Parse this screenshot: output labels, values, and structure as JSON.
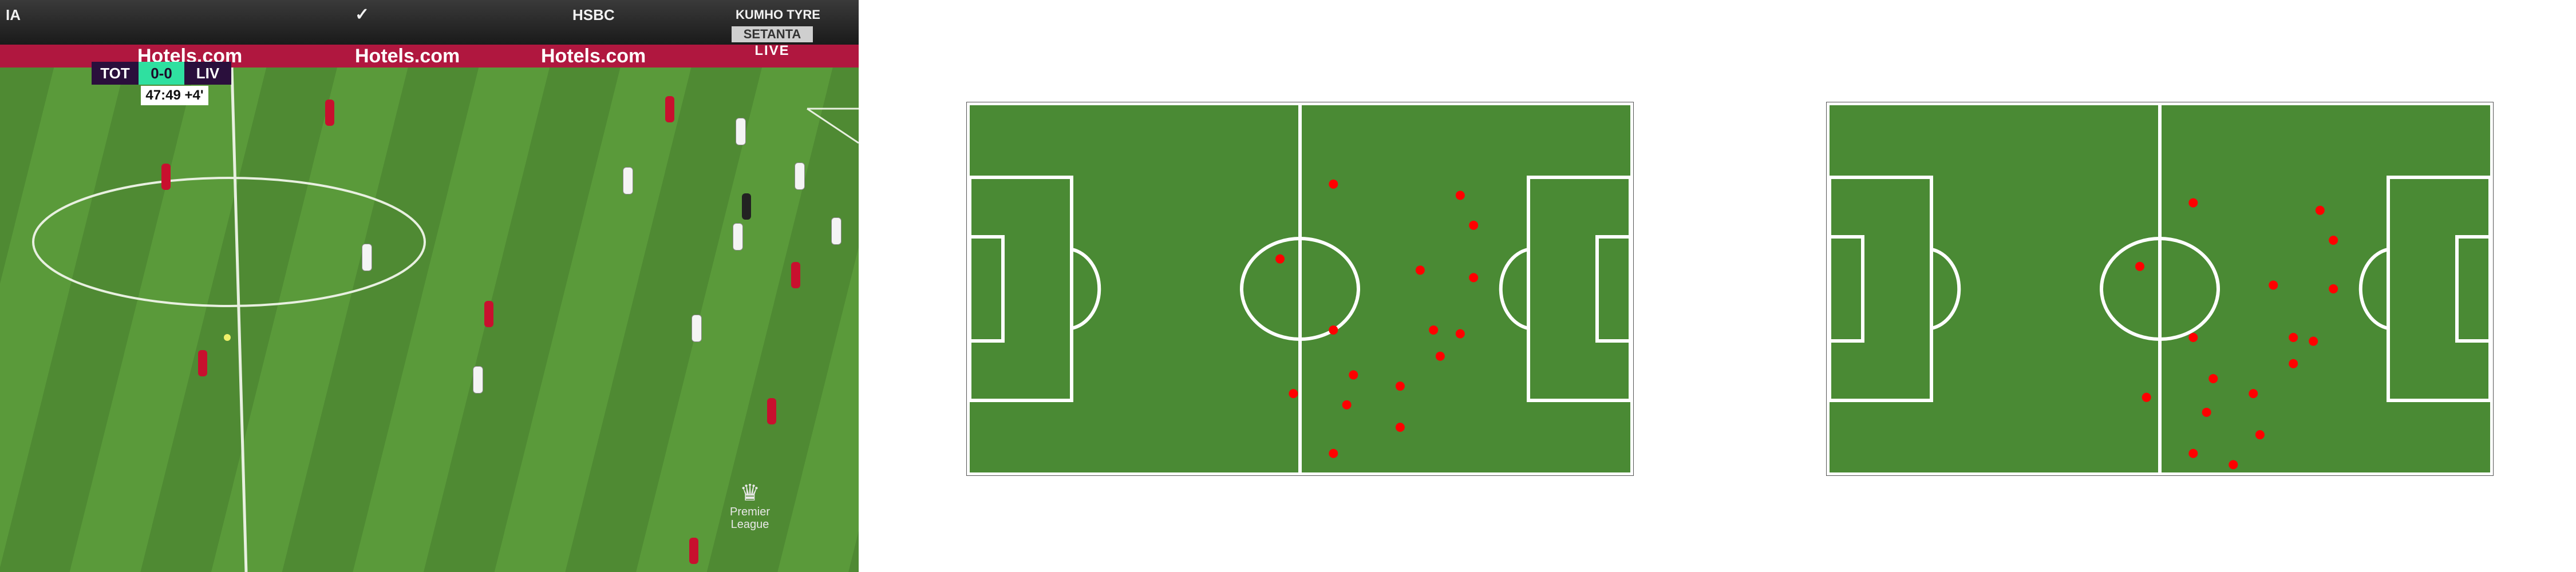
{
  "broadcast": {
    "stands_ads": [
      "IA",
      "HSBC",
      "KUMHO TYRE"
    ],
    "board_ads": [
      "Hotels.com",
      "Hotels.com",
      "Hotels.com"
    ],
    "scorebug": {
      "home": "TOT",
      "score": "0-0",
      "away": "LIV",
      "clock": "47:49",
      "added_time": "+4'"
    },
    "broadcaster_name": "SETANTA",
    "broadcaster_live": "LIVE",
    "league_logo_text": [
      "Premier",
      "League"
    ]
  },
  "colors": {
    "pitch_map": "#4a8a34",
    "player_dot": "#ff0000",
    "home_kit": "#f4f4f4",
    "away_kit": "#c8102e"
  },
  "tactical_maps": [
    {
      "name": "map-1",
      "player_positions": [
        [
          0.55,
          0.22
        ],
        [
          0.74,
          0.25
        ],
        [
          0.76,
          0.33
        ],
        [
          0.47,
          0.42
        ],
        [
          0.68,
          0.45
        ],
        [
          0.76,
          0.47
        ],
        [
          0.55,
          0.61
        ],
        [
          0.7,
          0.61
        ],
        [
          0.74,
          0.62
        ],
        [
          0.71,
          0.68
        ],
        [
          0.58,
          0.73
        ],
        [
          0.65,
          0.76
        ],
        [
          0.49,
          0.78
        ],
        [
          0.57,
          0.81
        ],
        [
          0.65,
          0.87
        ],
        [
          0.55,
          0.94
        ]
      ]
    },
    {
      "name": "map-2",
      "player_positions": [
        [
          0.55,
          0.27
        ],
        [
          0.74,
          0.29
        ],
        [
          0.76,
          0.37
        ],
        [
          0.47,
          0.44
        ],
        [
          0.67,
          0.49
        ],
        [
          0.76,
          0.5
        ],
        [
          0.55,
          0.63
        ],
        [
          0.7,
          0.63
        ],
        [
          0.73,
          0.64
        ],
        [
          0.7,
          0.7
        ],
        [
          0.58,
          0.74
        ],
        [
          0.64,
          0.78
        ],
        [
          0.48,
          0.79
        ],
        [
          0.57,
          0.83
        ],
        [
          0.65,
          0.89
        ],
        [
          0.55,
          0.94
        ],
        [
          0.61,
          0.97
        ]
      ]
    }
  ]
}
